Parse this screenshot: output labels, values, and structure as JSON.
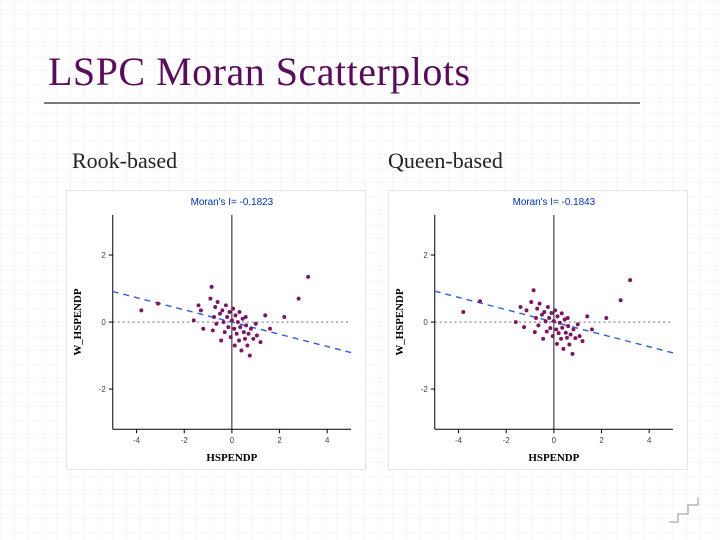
{
  "title": "LSPC Moran Scatterplots",
  "title_color": "#5a0c5a",
  "title_fontsize": 40,
  "underline_color": "#7a7a7a",
  "background_color": "#ffffff",
  "grid_color": "#f4f4f4",
  "charts": {
    "rook": {
      "subtitle": "Rook-based",
      "morans_label": "Moran's I= -0.1823",
      "morans_color": "#0033aa",
      "morans_fontsize": 10,
      "xlabel": "HSPENDP",
      "ylabel": "W_HSPENDP",
      "label_fontsize": 11,
      "label_color": "#000000",
      "type": "scatter",
      "xlim": [
        -5,
        5
      ],
      "ylim": [
        -3.2,
        3.2
      ],
      "xticks": [
        -4,
        -2,
        0,
        2,
        4
      ],
      "yticks": [
        -2,
        0,
        2
      ],
      "yticklabels": [
        "-2",
        "0",
        "2"
      ],
      "tick_fontsize": 8,
      "tick_color": "#444444",
      "axis_line_color": "#000000",
      "marker_color": "#7a1760",
      "marker_size": 2.0,
      "trend_line_color": "#2e5ccf",
      "trend_dash": "6 5",
      "zero_line_color": "#555555",
      "zero_dash": "2 3",
      "slope": -0.1823,
      "intercept": 0,
      "points": [
        [
          -3.8,
          0.35
        ],
        [
          -3.1,
          0.55
        ],
        [
          -1.6,
          0.05
        ],
        [
          -1.4,
          0.5
        ],
        [
          -1.2,
          -0.2
        ],
        [
          -1.3,
          0.35
        ],
        [
          -0.9,
          0.7
        ],
        [
          -0.85,
          1.05
        ],
        [
          -0.8,
          -0.25
        ],
        [
          -0.75,
          0.15
        ],
        [
          -0.7,
          0.45
        ],
        [
          -0.65,
          -0.05
        ],
        [
          -0.6,
          0.6
        ],
        [
          -0.5,
          0.25
        ],
        [
          -0.45,
          -0.55
        ],
        [
          -0.4,
          0.35
        ],
        [
          -0.35,
          0.0
        ],
        [
          -0.3,
          -0.3
        ],
        [
          -0.25,
          0.5
        ],
        [
          -0.2,
          0.15
        ],
        [
          -0.15,
          -0.15
        ],
        [
          -0.1,
          0.3
        ],
        [
          -0.05,
          -0.45
        ],
        [
          0.0,
          0.05
        ],
        [
          0.05,
          0.4
        ],
        [
          0.1,
          -0.2
        ],
        [
          0.12,
          -0.7
        ],
        [
          0.15,
          0.2
        ],
        [
          0.2,
          -0.35
        ],
        [
          0.25,
          0.0
        ],
        [
          0.3,
          -0.55
        ],
        [
          0.32,
          0.3
        ],
        [
          0.35,
          -0.15
        ],
        [
          0.4,
          -0.85
        ],
        [
          0.45,
          0.1
        ],
        [
          0.5,
          -0.3
        ],
        [
          0.55,
          -0.5
        ],
        [
          0.58,
          0.15
        ],
        [
          0.6,
          -0.1
        ],
        [
          0.65,
          -0.7
        ],
        [
          0.7,
          -0.35
        ],
        [
          0.75,
          -1.0
        ],
        [
          0.8,
          -0.2
        ],
        [
          0.9,
          -0.5
        ],
        [
          1.0,
          -0.05
        ],
        [
          1.05,
          -0.4
        ],
        [
          1.2,
          -0.6
        ],
        [
          1.4,
          0.2
        ],
        [
          1.6,
          -0.2
        ],
        [
          2.2,
          0.15
        ],
        [
          2.8,
          0.7
        ],
        [
          3.2,
          1.35
        ]
      ]
    },
    "queen": {
      "subtitle": "Queen-based",
      "morans_label": "Moran's I= -0.1843",
      "morans_color": "#0033aa",
      "morans_fontsize": 10,
      "xlabel": "HSPENDP",
      "ylabel": "W_HSPENDP",
      "label_fontsize": 11,
      "label_color": "#000000",
      "type": "scatter",
      "xlim": [
        -5,
        5
      ],
      "ylim": [
        -3.2,
        3.2
      ],
      "xticks": [
        -4,
        -2,
        0,
        2,
        4
      ],
      "yticks": [
        -2,
        0,
        2
      ],
      "yticklabels": [
        "-2",
        "0",
        "2"
      ],
      "tick_fontsize": 8,
      "tick_color": "#444444",
      "axis_line_color": "#000000",
      "marker_color": "#7a1760",
      "marker_size": 2.0,
      "trend_line_color": "#2e5ccf",
      "trend_dash": "6 5",
      "zero_line_color": "#555555",
      "zero_dash": "2 3",
      "slope": -0.1843,
      "intercept": 0,
      "points": [
        [
          -3.8,
          0.3
        ],
        [
          -3.1,
          0.62
        ],
        [
          -1.6,
          0.0
        ],
        [
          -1.4,
          0.45
        ],
        [
          -1.25,
          -0.15
        ],
        [
          -1.15,
          0.35
        ],
        [
          -0.95,
          0.6
        ],
        [
          -0.85,
          0.95
        ],
        [
          -0.8,
          -0.3
        ],
        [
          -0.75,
          0.12
        ],
        [
          -0.7,
          0.4
        ],
        [
          -0.65,
          -0.1
        ],
        [
          -0.6,
          0.55
        ],
        [
          -0.5,
          0.22
        ],
        [
          -0.45,
          -0.5
        ],
        [
          -0.4,
          0.3
        ],
        [
          -0.35,
          0.02
        ],
        [
          -0.3,
          -0.28
        ],
        [
          -0.25,
          0.45
        ],
        [
          -0.2,
          0.12
        ],
        [
          -0.15,
          -0.18
        ],
        [
          -0.1,
          0.27
        ],
        [
          -0.05,
          -0.42
        ],
        [
          0.0,
          0.03
        ],
        [
          0.05,
          0.35
        ],
        [
          0.1,
          -0.22
        ],
        [
          0.13,
          -0.65
        ],
        [
          0.15,
          0.17
        ],
        [
          0.2,
          -0.33
        ],
        [
          0.25,
          -0.02
        ],
        [
          0.3,
          -0.5
        ],
        [
          0.33,
          0.26
        ],
        [
          0.35,
          -0.17
        ],
        [
          0.4,
          -0.8
        ],
        [
          0.45,
          0.08
        ],
        [
          0.5,
          -0.32
        ],
        [
          0.55,
          -0.47
        ],
        [
          0.58,
          0.12
        ],
        [
          0.6,
          -0.12
        ],
        [
          0.65,
          -0.67
        ],
        [
          0.7,
          -0.37
        ],
        [
          0.78,
          -0.95
        ],
        [
          0.82,
          -0.22
        ],
        [
          0.9,
          -0.48
        ],
        [
          1.0,
          -0.07
        ],
        [
          1.08,
          -0.42
        ],
        [
          1.2,
          -0.57
        ],
        [
          1.4,
          0.17
        ],
        [
          1.6,
          -0.22
        ],
        [
          2.2,
          0.12
        ],
        [
          2.8,
          0.65
        ],
        [
          3.2,
          1.25
        ]
      ]
    }
  },
  "corner_deco": {
    "stroke": "#c0c0c8",
    "width": 32,
    "height": 28
  }
}
